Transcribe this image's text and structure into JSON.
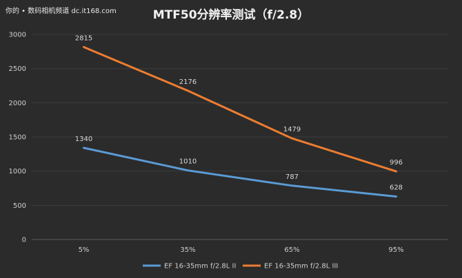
{
  "watermark": "你的 • 数码相机频道  dc.it168.com",
  "chart_data": {
    "type": "line",
    "title": "MTF50分辨率测试（f/2.8）",
    "categories": [
      "5%",
      "35%",
      "65%",
      "95%"
    ],
    "ylim": [
      0,
      3000
    ],
    "yticks": [
      0,
      500,
      1000,
      1500,
      2000,
      2500,
      3000
    ],
    "grid": true,
    "legend": "bottom",
    "series": [
      {
        "name": "EF 16-35mm f/2.8L II",
        "values": [
          1340,
          1010,
          787,
          628
        ],
        "color": "#5b9bd5"
      },
      {
        "name": "EF 16-35mm f/2.8L III",
        "values": [
          2815,
          2176,
          1479,
          996
        ],
        "color": "#ed7d31"
      }
    ]
  }
}
